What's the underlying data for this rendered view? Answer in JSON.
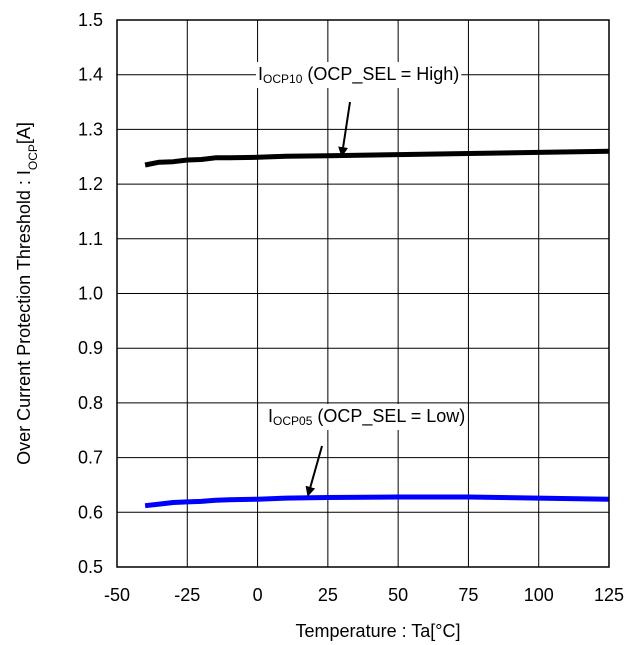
{
  "chart_data": {
    "type": "line",
    "title": "",
    "xlabel": "Temperature : Ta[°C]",
    "ylabel": "Over Current Protection Threshold : IOCP[A]",
    "ylabel_parts": {
      "prefix": "Over Current Protection Threshold : I",
      "sub": "OCP",
      "suffix": "[A]"
    },
    "xlim": [
      -50,
      125
    ],
    "ylim": [
      0.5,
      1.5
    ],
    "xticks": [
      -50,
      -25,
      0,
      25,
      50,
      75,
      100,
      125
    ],
    "yticks": [
      0.5,
      0.6,
      0.7,
      0.8,
      0.9,
      1.0,
      1.1,
      1.2,
      1.3,
      1.4,
      1.5
    ],
    "ytick_labels": [
      "0.5",
      "0.6",
      "0.7",
      "0.8",
      "0.9",
      "1.0",
      "1.1",
      "1.2",
      "1.3",
      "1.4",
      "1.5"
    ],
    "xtick_labels": [
      "-50",
      "-25",
      "0",
      "25",
      "50",
      "75",
      "100",
      "125"
    ],
    "grid": true,
    "series": [
      {
        "name": "IOCP10 (OCP_SEL = High)",
        "color": "#000000",
        "x": [
          -40,
          -35,
          -30,
          -25,
          -20,
          -15,
          -10,
          0,
          10,
          25,
          50,
          75,
          100,
          125
        ],
        "y": [
          1.235,
          1.24,
          1.241,
          1.244,
          1.245,
          1.248,
          1.248,
          1.249,
          1.251,
          1.252,
          1.254,
          1.256,
          1.258,
          1.26
        ]
      },
      {
        "name": "IOCP05 (OCP_SEL = Low)",
        "color": "#0000ff",
        "x": [
          -40,
          -35,
          -30,
          -25,
          -20,
          -15,
          -10,
          0,
          10,
          25,
          50,
          75,
          100,
          125
        ],
        "y": [
          0.612,
          0.615,
          0.618,
          0.619,
          0.62,
          0.622,
          0.623,
          0.624,
          0.626,
          0.627,
          0.628,
          0.628,
          0.626,
          0.624
        ]
      }
    ],
    "annotations": [
      {
        "main": "I",
        "sub": "OCP10",
        "rest": " (OCP_SEL = High)",
        "series": 0,
        "arrow_to": [
          30,
          1.253
        ]
      },
      {
        "main": "I",
        "sub": "OCP05",
        "rest": " (OCP_SEL = Low)",
        "series": 1,
        "arrow_to": [
          18,
          0.632
        ]
      }
    ]
  }
}
